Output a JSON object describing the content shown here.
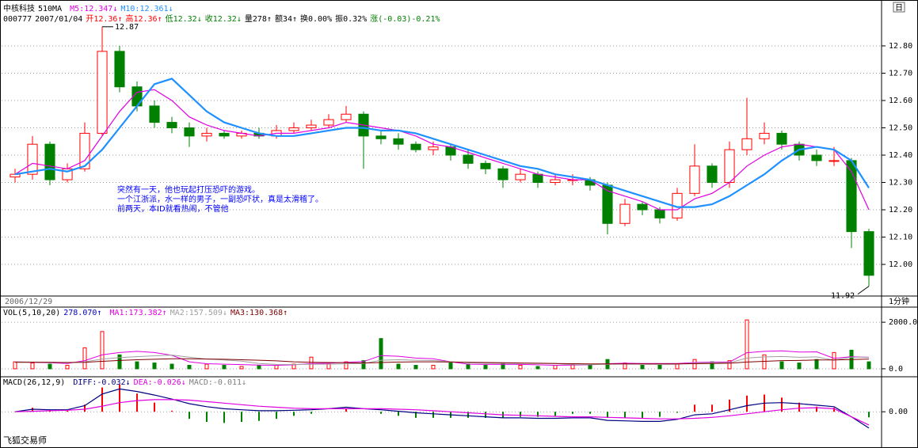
{
  "icon": "日",
  "footer": "飞狐交易师",
  "chart_data": [
    {
      "type": "candlestick",
      "title": "中核科技",
      "subtitle": "510MA",
      "header": [
        {
          "text": "000777",
          "color": "#000000"
        },
        {
          "text": "2007/01/04",
          "color": "#000000"
        },
        {
          "text": "开12.36↑",
          "color": "#ff0000"
        },
        {
          "text": "高12.36↑",
          "color": "#ff0000"
        },
        {
          "text": "低12.32↓",
          "color": "#008000"
        },
        {
          "text": "收12.32↓",
          "color": "#008000"
        },
        {
          "text": "量278↑",
          "color": "#000000"
        },
        {
          "text": "额34↑",
          "color": "#000000"
        },
        {
          "text": "换0.00%",
          "color": "#000000"
        },
        {
          "text": "振0.32%",
          "color": "#000000"
        },
        {
          "text": "涨(-0.03)-0.21%",
          "color": "#008000"
        }
      ],
      "annotations": [
        "突然有一天，他也玩起打压恐吓的游戏。",
        "一个江浙派，水一样的男子，一副恐吓状，真是太滑稽了。",
        "前两天，本ID就看热闹，不管他"
      ],
      "date_label": "2006/12/29",
      "period_label": "1分钟",
      "up_color": "#ff0000",
      "down_color": "#008000",
      "grid": true,
      "ylim": [
        11.89,
        12.91
      ],
      "yticks": [
        {
          "value": 12.0,
          "label": "12.00"
        },
        {
          "value": 12.1,
          "label": "12.10"
        },
        {
          "value": 12.2,
          "label": "12.20"
        },
        {
          "value": 12.3,
          "label": "12.30"
        },
        {
          "value": 12.4,
          "label": "12.40"
        },
        {
          "value": 12.5,
          "label": "12.50"
        },
        {
          "value": 12.6,
          "label": "12.60"
        },
        {
          "value": 12.7,
          "label": "12.70"
        },
        {
          "value": 12.8,
          "label": "12.80"
        }
      ],
      "open": [
        12.32,
        12.33,
        12.44,
        12.31,
        12.35,
        12.48,
        12.78,
        12.65,
        12.58,
        12.52,
        12.5,
        12.47,
        12.48,
        12.47,
        12.48,
        12.47,
        12.49,
        12.5,
        12.51,
        12.53,
        12.55,
        12.47,
        12.46,
        12.44,
        12.42,
        12.43,
        12.4,
        12.37,
        12.35,
        12.31,
        12.33,
        12.3,
        12.31,
        12.31,
        12.29,
        12.15,
        12.22,
        12.2,
        12.17,
        12.26,
        12.36,
        12.3,
        12.42,
        12.46,
        12.48,
        12.44,
        12.4,
        12.38,
        12.38,
        12.12
      ],
      "high": [
        12.35,
        12.47,
        12.45,
        12.37,
        12.52,
        12.87,
        12.8,
        12.67,
        12.6,
        12.54,
        12.52,
        12.5,
        12.49,
        12.49,
        12.5,
        12.51,
        12.52,
        12.53,
        12.55,
        12.58,
        12.56,
        12.49,
        12.48,
        12.45,
        12.45,
        12.44,
        12.42,
        12.38,
        12.36,
        12.35,
        12.34,
        12.33,
        12.33,
        12.32,
        12.3,
        12.24,
        12.23,
        12.21,
        12.28,
        12.44,
        12.37,
        12.45,
        12.61,
        12.52,
        12.49,
        12.45,
        12.42,
        12.43,
        12.39,
        12.13
      ],
      "low": [
        12.3,
        12.31,
        12.29,
        12.3,
        12.34,
        12.47,
        12.63,
        12.56,
        12.5,
        12.48,
        12.43,
        12.45,
        12.46,
        12.46,
        12.46,
        12.46,
        12.48,
        12.49,
        12.5,
        12.52,
        12.35,
        12.44,
        12.42,
        12.41,
        12.4,
        12.38,
        12.35,
        12.33,
        12.28,
        12.3,
        12.28,
        12.29,
        12.29,
        12.27,
        12.11,
        12.14,
        12.18,
        12.15,
        12.16,
        12.25,
        12.28,
        12.28,
        12.4,
        12.44,
        12.42,
        12.38,
        12.36,
        12.36,
        12.06,
        11.92
      ],
      "close": [
        12.33,
        12.44,
        12.31,
        12.35,
        12.48,
        12.78,
        12.65,
        12.58,
        12.52,
        12.5,
        12.47,
        12.48,
        12.47,
        12.48,
        12.47,
        12.49,
        12.5,
        12.51,
        12.53,
        12.55,
        12.47,
        12.46,
        12.44,
        12.42,
        12.43,
        12.4,
        12.37,
        12.35,
        12.31,
        12.33,
        12.3,
        12.31,
        12.31,
        12.29,
        12.15,
        12.22,
        12.2,
        12.17,
        12.26,
        12.36,
        12.3,
        12.42,
        12.46,
        12.48,
        12.44,
        12.4,
        12.38,
        12.38,
        12.12,
        11.96
      ],
      "series": [
        {
          "name": "M5:12.347↓",
          "color": "#e000e0",
          "values": [
            12.33,
            12.37,
            12.36,
            12.35,
            12.38,
            12.47,
            12.56,
            12.63,
            12.64,
            12.6,
            12.54,
            12.51,
            12.49,
            12.48,
            12.47,
            12.48,
            12.48,
            12.49,
            12.5,
            12.52,
            12.51,
            12.5,
            12.49,
            12.47,
            12.44,
            12.43,
            12.41,
            12.39,
            12.37,
            12.35,
            12.33,
            12.32,
            12.31,
            12.31,
            12.27,
            12.25,
            12.23,
            12.2,
            12.2,
            12.24,
            12.26,
            12.3,
            12.36,
            12.4,
            12.43,
            12.44,
            12.43,
            12.42,
            12.34,
            12.2
          ]
        },
        {
          "name": "M10:12.361↓",
          "color": "#1e90ff",
          "values": [
            12.33,
            12.34,
            12.35,
            12.34,
            12.36,
            12.42,
            12.5,
            12.58,
            12.66,
            12.68,
            12.62,
            12.56,
            12.52,
            12.5,
            12.48,
            12.47,
            12.47,
            12.48,
            12.49,
            12.5,
            12.5,
            12.49,
            12.49,
            12.48,
            12.46,
            12.44,
            12.42,
            12.4,
            12.38,
            12.36,
            12.35,
            12.33,
            12.32,
            12.31,
            12.29,
            12.27,
            12.25,
            12.23,
            12.21,
            12.21,
            12.22,
            12.25,
            12.29,
            12.33,
            12.38,
            12.42,
            12.43,
            12.42,
            12.38,
            12.28
          ]
        }
      ]
    },
    {
      "type": "volume",
      "title": "VOL(5,10,20)",
      "current": "278.070↑",
      "current_color": "#0000c0",
      "ylim": [
        -240,
        2480
      ],
      "yticks": [
        {
          "value": 0,
          "label": "0.0"
        },
        {
          "value": 2000,
          "label": "2000.0"
        }
      ],
      "grid": true,
      "values": [
        300,
        250,
        200,
        150,
        900,
        1600,
        600,
        300,
        250,
        200,
        150,
        200,
        150,
        100,
        150,
        150,
        200,
        500,
        200,
        300,
        350,
        1300,
        200,
        150,
        150,
        250,
        200,
        150,
        200,
        150,
        100,
        150,
        200,
        150,
        400,
        250,
        150,
        150,
        200,
        400,
        300,
        350,
        2100,
        600,
        300,
        250,
        400,
        700,
        800,
        300
      ],
      "series": [
        {
          "name": "MA1:173.382↑",
          "color": "#e000e0",
          "values": [
            300,
            280,
            260,
            230,
            350,
            600,
            700,
            750,
            700,
            580,
            300,
            220,
            200,
            180,
            160,
            150,
            170,
            230,
            240,
            280,
            310,
            570,
            540,
            460,
            430,
            300,
            200,
            190,
            190,
            190,
            170,
            150,
            160,
            170,
            220,
            240,
            230,
            230,
            230,
            270,
            290,
            290,
            690,
            750,
            770,
            720,
            730,
            450,
            520,
            490
          ]
        },
        {
          "name": "MA2:157.509↓",
          "color": "#a0a0a0",
          "values": [
            300,
            290,
            280,
            260,
            300,
            420,
            480,
            520,
            560,
            590,
            500,
            420,
            380,
            330,
            230,
            190,
            185,
            200,
            200,
            215,
            230,
            370,
            390,
            370,
            355,
            305,
            255,
            240,
            235,
            235,
            230,
            225,
            175,
            180,
            195,
            205,
            200,
            195,
            200,
            245,
            265,
            260,
            460,
            510,
            530,
            495,
            510,
            370,
            500,
            500
          ]
        },
        {
          "name": "MA3:130.368↑",
          "color": "#800000",
          "values": [
            280,
            280,
            280,
            270,
            280,
            320,
            360,
            390,
            410,
            430,
            430,
            420,
            410,
            390,
            370,
            340,
            300,
            280,
            270,
            260,
            250,
            270,
            290,
            300,
            300,
            290,
            280,
            270,
            260,
            250,
            240,
            230,
            220,
            210,
            210,
            210,
            210,
            210,
            210,
            220,
            230,
            240,
            290,
            320,
            350,
            360,
            380,
            380,
            400,
            420
          ]
        }
      ]
    },
    {
      "type": "macd",
      "title": "MACD(26,12,9)",
      "ylim": [
        -0.07,
        0.066
      ],
      "yticks": [
        {
          "value": 0,
          "label": "0.00"
        }
      ],
      "grid": true,
      "series": [
        {
          "name": "DIFF:-0.032↓",
          "color": "#000080",
          "values": [
            0,
            0.005,
            0.004,
            0.004,
            0.012,
            0.035,
            0.045,
            0.04,
            0.033,
            0.025,
            0.016,
            0.01,
            0.006,
            0.004,
            0.002,
            0.002,
            0.003,
            0.004,
            0.006,
            0.009,
            0.006,
            0.004,
            0.001,
            -0.002,
            -0.004,
            -0.006,
            -0.008,
            -0.01,
            -0.012,
            -0.012,
            -0.013,
            -0.013,
            -0.012,
            -0.012,
            -0.017,
            -0.018,
            -0.019,
            -0.019,
            -0.015,
            -0.006,
            -0.004,
            0.004,
            0.012,
            0.017,
            0.018,
            0.016,
            0.013,
            0.01,
            -0.01,
            -0.032
          ]
        },
        {
          "name": "DEA:-0.026↓",
          "color": "#e000e0",
          "values": [
            0,
            0.001,
            0.002,
            0.003,
            0.005,
            0.011,
            0.018,
            0.022,
            0.024,
            0.024,
            0.023,
            0.02,
            0.017,
            0.014,
            0.011,
            0.009,
            0.007,
            0.006,
            0.006,
            0.006,
            0.006,
            0.006,
            0.005,
            0.004,
            0.002,
            0.0,
            -0.002,
            -0.004,
            -0.006,
            -0.007,
            -0.008,
            -0.009,
            -0.01,
            -0.01,
            -0.011,
            -0.012,
            -0.013,
            -0.014,
            -0.014,
            -0.013,
            -0.011,
            -0.008,
            -0.004,
            0.0,
            0.004,
            0.007,
            0.008,
            0.006,
            -0.01,
            -0.026
          ]
        }
      ],
      "bars": {
        "name": "MACD:-0.011↓",
        "color": "#808080",
        "up_color": "#ff0000",
        "down_color": "#008000",
        "values": [
          0,
          0.008,
          0.004,
          0.002,
          0.014,
          0.048,
          0.054,
          0.036,
          0.018,
          0.002,
          -0.014,
          -0.02,
          -0.022,
          -0.02,
          -0.018,
          -0.014,
          -0.008,
          -0.004,
          0,
          0.006,
          0,
          -0.004,
          -0.008,
          -0.012,
          -0.012,
          -0.012,
          -0.012,
          -0.012,
          -0.012,
          -0.01,
          -0.01,
          -0.008,
          -0.004,
          -0.004,
          -0.012,
          -0.012,
          -0.012,
          -0.01,
          -0.002,
          0.014,
          0.014,
          0.024,
          0.032,
          0.034,
          0.028,
          0.018,
          0.01,
          0.008,
          0,
          -0.011
        ]
      }
    }
  ]
}
